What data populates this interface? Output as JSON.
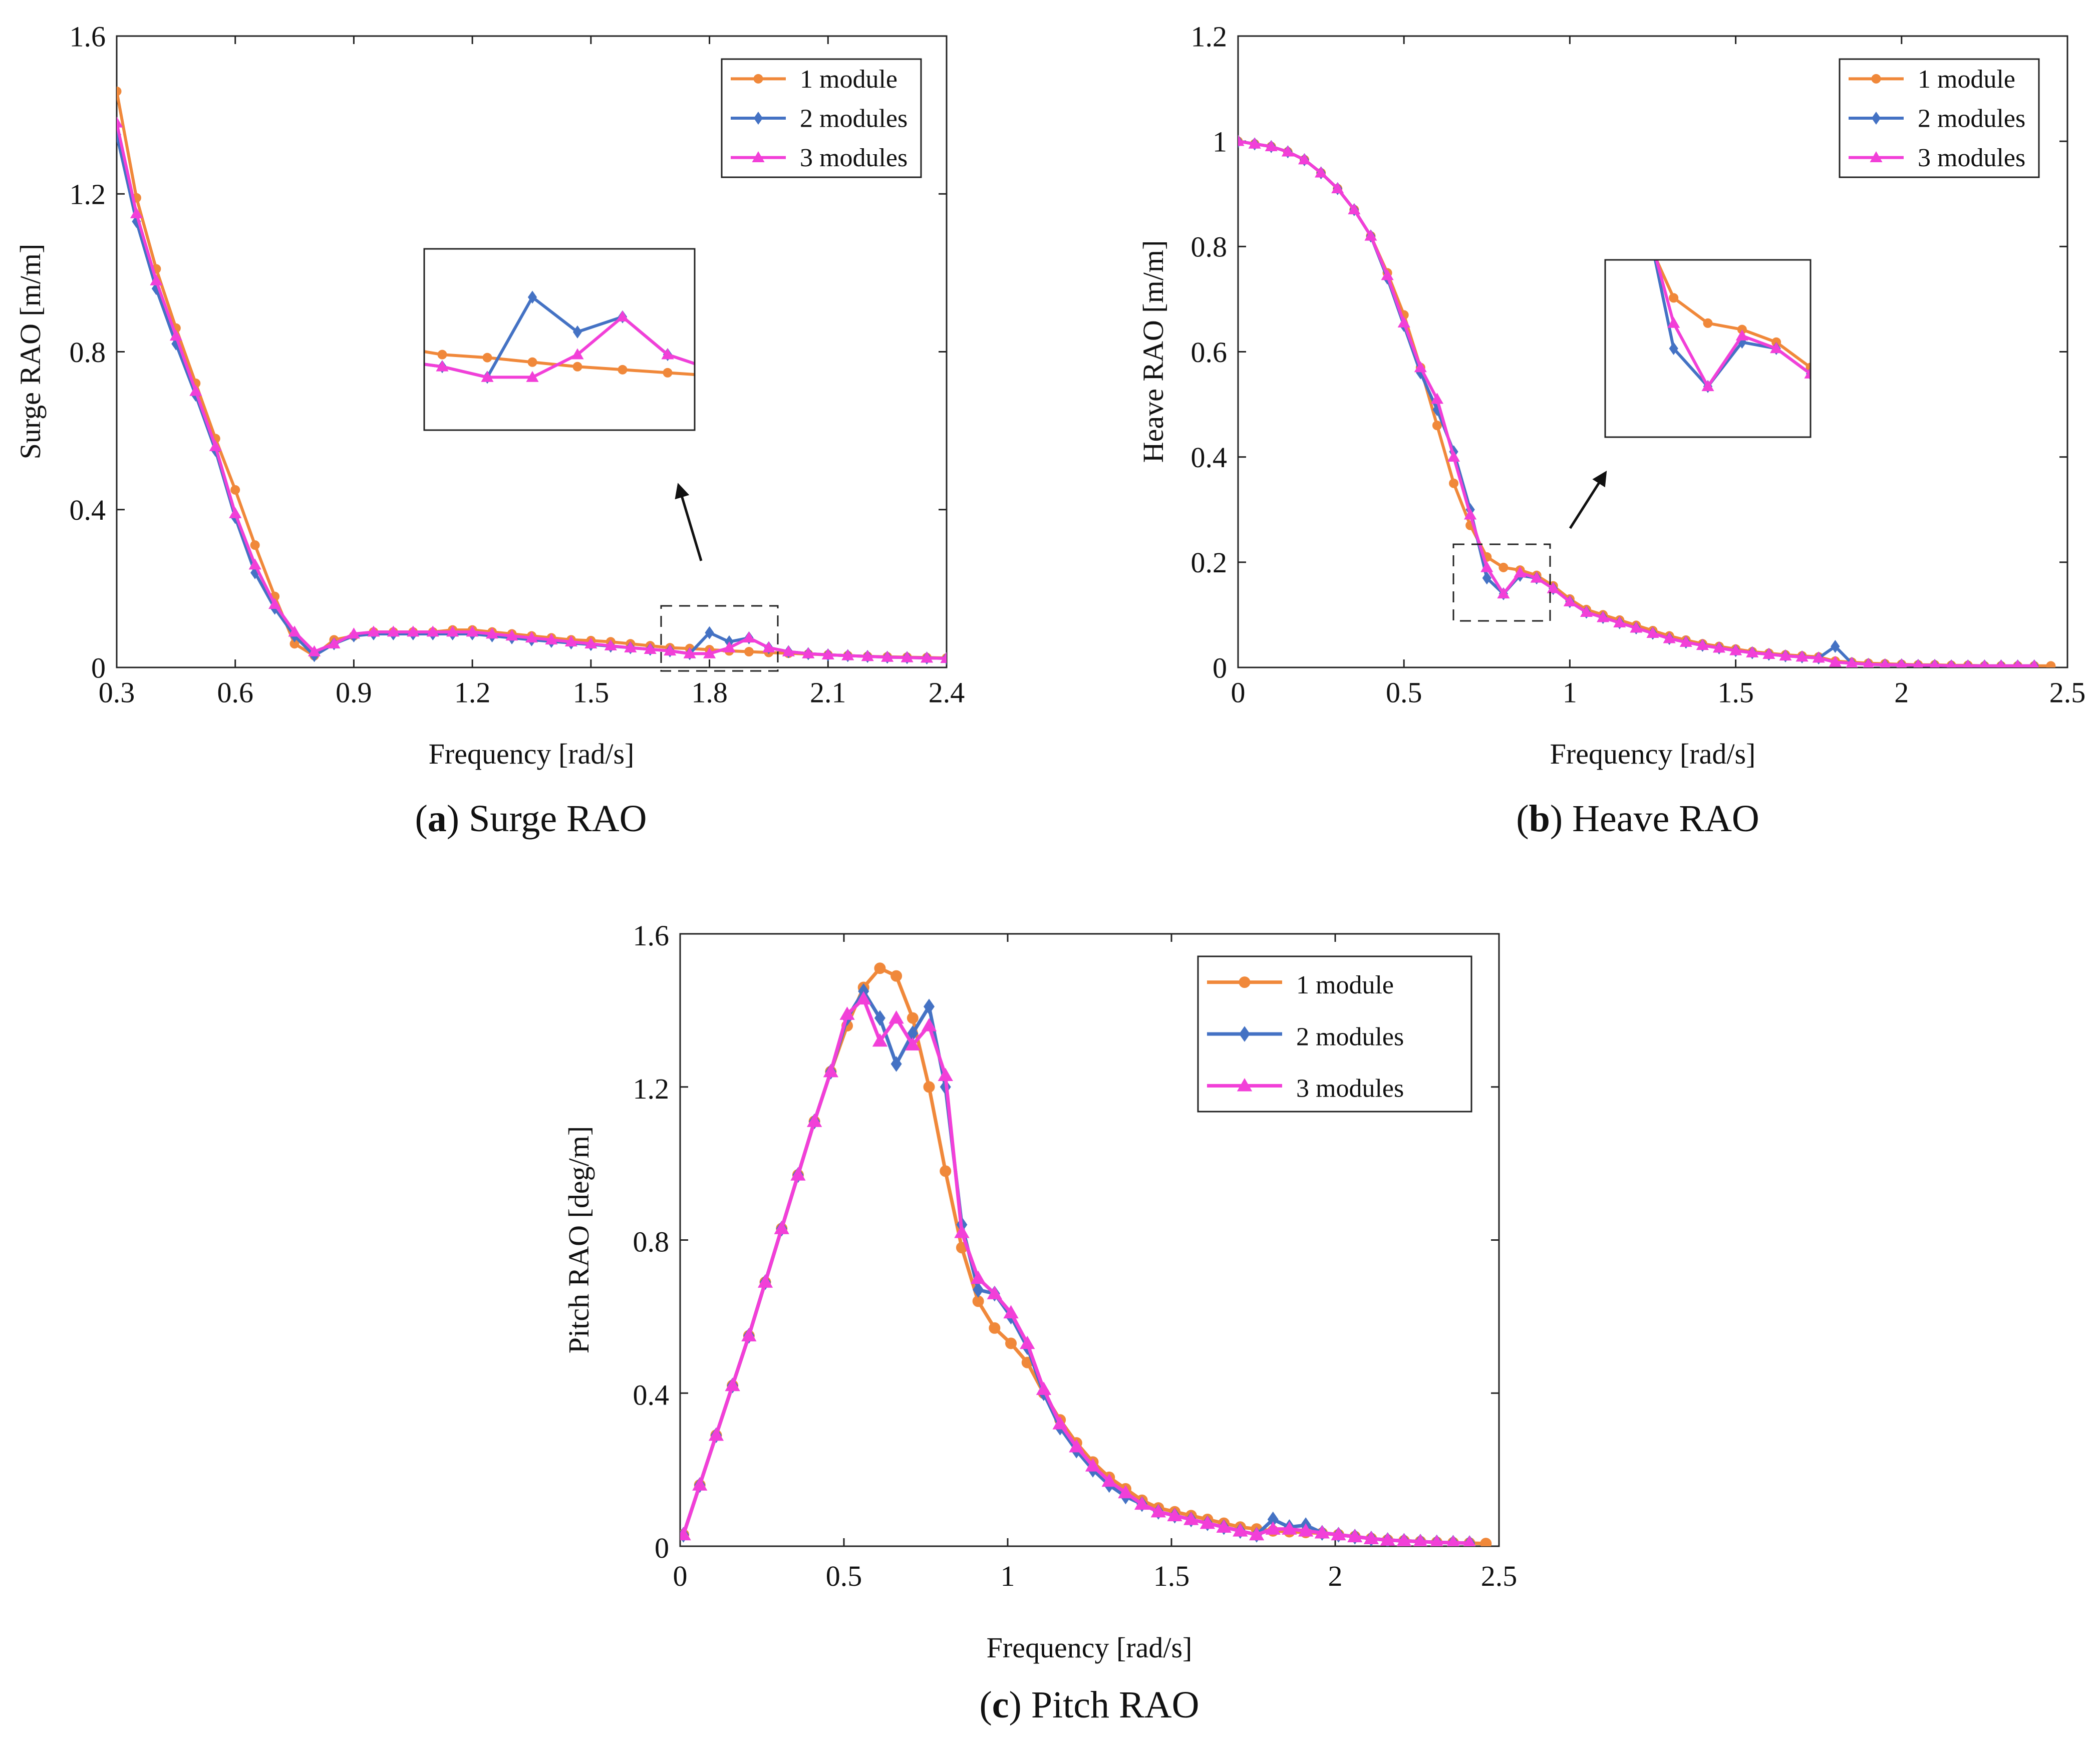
{
  "colors": {
    "one_module": "#F0883A",
    "two_modules": "#4472C4",
    "three_modules": "#F23FD8"
  },
  "chart_data": [
    {
      "id": "a",
      "type": "line",
      "caption_letter": "a",
      "caption_text": "Surge RAO",
      "xlabel": "Frequency [rad/s]",
      "ylabel": "Surge RAO [m/m]",
      "xlim": [
        0.3,
        2.4
      ],
      "ylim": [
        0,
        1.6
      ],
      "xticks": [
        0.3,
        0.6,
        0.9,
        1.2,
        1.5,
        1.8,
        2.1,
        2.4
      ],
      "yticks": [
        0,
        0.4,
        0.8,
        1.2,
        1.6
      ],
      "xtick_labels": [
        "0.3",
        "0.6",
        "0.9",
        "1.2",
        "1.5",
        "1.8",
        "2.1",
        "2.4"
      ],
      "ytick_labels": [
        "0",
        "0.4",
        "0.8",
        "1.2",
        "1.6"
      ],
      "legend": [
        "1 module",
        "2 modules",
        "3 modules"
      ],
      "legend_position": "top-right",
      "inset": {
        "xlim": [
          1.68,
          1.98
        ],
        "ylim": [
          0.0,
          0.12
        ]
      },
      "series": [
        {
          "name": "1 module",
          "x": [
            0.3,
            0.35,
            0.4,
            0.45,
            0.5,
            0.55,
            0.6,
            0.65,
            0.7,
            0.75,
            0.8,
            0.85,
            0.9,
            0.95,
            1.0,
            1.05,
            1.1,
            1.15,
            1.2,
            1.25,
            1.3,
            1.35,
            1.4,
            1.45,
            1.5,
            1.55,
            1.6,
            1.65,
            1.7,
            1.75,
            1.8,
            1.85,
            1.9,
            1.95,
            2.0,
            2.05,
            2.1,
            2.15,
            2.2,
            2.25,
            2.3,
            2.35,
            2.4
          ],
          "y": [
            1.46,
            1.19,
            1.01,
            0.86,
            0.72,
            0.58,
            0.45,
            0.31,
            0.18,
            0.06,
            0.03,
            0.07,
            0.08,
            0.09,
            0.09,
            0.09,
            0.09,
            0.095,
            0.095,
            0.09,
            0.085,
            0.08,
            0.075,
            0.07,
            0.068,
            0.065,
            0.06,
            0.055,
            0.05,
            0.048,
            0.045,
            0.042,
            0.04,
            0.038,
            0.036,
            0.034,
            0.032,
            0.03,
            0.028,
            0.027,
            0.026,
            0.025,
            0.024
          ]
        },
        {
          "name": "2 modules",
          "x": [
            0.3,
            0.35,
            0.4,
            0.45,
            0.5,
            0.55,
            0.6,
            0.65,
            0.7,
            0.75,
            0.8,
            0.85,
            0.9,
            0.95,
            1.0,
            1.05,
            1.1,
            1.15,
            1.2,
            1.25,
            1.3,
            1.35,
            1.4,
            1.45,
            1.5,
            1.55,
            1.6,
            1.65,
            1.7,
            1.75,
            1.8,
            1.85,
            1.9,
            1.95,
            2.0,
            2.05,
            2.1,
            2.15,
            2.2,
            2.25,
            2.3,
            2.35,
            2.4
          ],
          "y": [
            1.35,
            1.13,
            0.96,
            0.82,
            0.69,
            0.55,
            0.38,
            0.24,
            0.15,
            0.08,
            0.03,
            0.06,
            0.08,
            0.085,
            0.085,
            0.085,
            0.085,
            0.085,
            0.085,
            0.08,
            0.075,
            0.07,
            0.066,
            0.062,
            0.058,
            0.054,
            0.05,
            0.046,
            0.042,
            0.035,
            0.088,
            0.065,
            0.075,
            0.05,
            0.04,
            0.035,
            0.032,
            0.03,
            0.028,
            0.026,
            0.025,
            0.024,
            0.023
          ]
        },
        {
          "name": "3 modules",
          "x": [
            0.3,
            0.35,
            0.4,
            0.45,
            0.5,
            0.55,
            0.6,
            0.65,
            0.7,
            0.75,
            0.8,
            0.85,
            0.9,
            0.95,
            1.0,
            1.05,
            1.1,
            1.15,
            1.2,
            1.25,
            1.3,
            1.35,
            1.4,
            1.45,
            1.5,
            1.55,
            1.6,
            1.65,
            1.7,
            1.75,
            1.8,
            1.85,
            1.9,
            1.95,
            2.0,
            2.05,
            2.1,
            2.15,
            2.2,
            2.25,
            2.3,
            2.35,
            2.4
          ],
          "y": [
            1.38,
            1.15,
            0.98,
            0.84,
            0.7,
            0.56,
            0.39,
            0.26,
            0.16,
            0.09,
            0.04,
            0.06,
            0.085,
            0.09,
            0.09,
            0.09,
            0.09,
            0.09,
            0.09,
            0.085,
            0.08,
            0.075,
            0.07,
            0.065,
            0.06,
            0.055,
            0.05,
            0.046,
            0.042,
            0.035,
            0.035,
            0.05,
            0.075,
            0.05,
            0.04,
            0.035,
            0.032,
            0.03,
            0.028,
            0.026,
            0.025,
            0.024,
            0.023
          ]
        }
      ]
    },
    {
      "id": "b",
      "type": "line",
      "caption_letter": "b",
      "caption_text": "Heave RAO",
      "xlabel": "Frequency [rad/s]",
      "ylabel": "Heave RAO [m/m]",
      "xlim": [
        0,
        2.5
      ],
      "ylim": [
        0,
        1.2
      ],
      "xticks": [
        0,
        0.5,
        1,
        1.5,
        2,
        2.5
      ],
      "yticks": [
        0,
        0.2,
        0.4,
        0.6,
        0.8,
        1,
        1.2
      ],
      "xtick_labels": [
        "0",
        "0.5",
        "1",
        "1.5",
        "2",
        "2.5"
      ],
      "ytick_labels": [
        "0",
        "0.2",
        "0.4",
        "0.6",
        "0.8",
        "1",
        "1.2"
      ],
      "legend": [
        "1 module",
        "2 modules",
        "3 modules"
      ],
      "legend_position": "top-right",
      "inset": {
        "xlim": [
          0.65,
          0.95
        ],
        "ylim": [
          0.1,
          0.24
        ]
      },
      "series": [
        {
          "name": "1 module",
          "x": [
            0,
            0.05,
            0.1,
            0.15,
            0.2,
            0.25,
            0.3,
            0.35,
            0.4,
            0.45,
            0.5,
            0.55,
            0.6,
            0.65,
            0.7,
            0.75,
            0.8,
            0.85,
            0.9,
            0.95,
            1.0,
            1.05,
            1.1,
            1.15,
            1.2,
            1.25,
            1.3,
            1.35,
            1.4,
            1.45,
            1.5,
            1.55,
            1.6,
            1.65,
            1.7,
            1.75,
            1.8,
            1.85,
            1.9,
            1.95,
            2.0,
            2.05,
            2.1,
            2.15,
            2.2,
            2.25,
            2.3,
            2.35,
            2.4,
            2.45
          ],
          "y": [
            1.0,
            0.995,
            0.99,
            0.98,
            0.965,
            0.94,
            0.91,
            0.87,
            0.82,
            0.75,
            0.67,
            0.57,
            0.46,
            0.35,
            0.27,
            0.21,
            0.19,
            0.185,
            0.175,
            0.155,
            0.13,
            0.11,
            0.1,
            0.09,
            0.08,
            0.07,
            0.06,
            0.052,
            0.045,
            0.04,
            0.035,
            0.03,
            0.027,
            0.024,
            0.022,
            0.02,
            0.012,
            0.01,
            0.008,
            0.007,
            0.006,
            0.005,
            0.005,
            0.004,
            0.004,
            0.003,
            0.003,
            0.003,
            0.003,
            0.003
          ]
        },
        {
          "name": "2 modules",
          "x": [
            0,
            0.05,
            0.1,
            0.15,
            0.2,
            0.25,
            0.3,
            0.35,
            0.4,
            0.45,
            0.5,
            0.55,
            0.6,
            0.65,
            0.7,
            0.75,
            0.8,
            0.85,
            0.9,
            0.95,
            1.0,
            1.05,
            1.1,
            1.15,
            1.2,
            1.25,
            1.3,
            1.35,
            1.4,
            1.45,
            1.5,
            1.55,
            1.6,
            1.65,
            1.7,
            1.75,
            1.8,
            1.85,
            1.9,
            1.95,
            2.0,
            2.05,
            2.1,
            2.15,
            2.2,
            2.25,
            2.3,
            2.35,
            2.4
          ],
          "y": [
            1.0,
            0.995,
            0.99,
            0.98,
            0.965,
            0.94,
            0.91,
            0.87,
            0.82,
            0.74,
            0.65,
            0.56,
            0.49,
            0.41,
            0.3,
            0.17,
            0.14,
            0.175,
            0.17,
            0.15,
            0.125,
            0.105,
            0.095,
            0.085,
            0.075,
            0.065,
            0.055,
            0.048,
            0.042,
            0.037,
            0.032,
            0.028,
            0.025,
            0.022,
            0.02,
            0.018,
            0.04,
            0.008,
            0.006,
            0.005,
            0.005,
            0.004,
            0.004,
            0.003,
            0.003,
            0.003,
            0.003,
            0.003,
            0.003
          ]
        },
        {
          "name": "3 modules",
          "x": [
            0,
            0.05,
            0.1,
            0.15,
            0.2,
            0.25,
            0.3,
            0.35,
            0.4,
            0.45,
            0.5,
            0.55,
            0.6,
            0.65,
            0.7,
            0.75,
            0.8,
            0.85,
            0.9,
            0.95,
            1.0,
            1.05,
            1.1,
            1.15,
            1.2,
            1.25,
            1.3,
            1.35,
            1.4,
            1.45,
            1.5,
            1.55,
            1.6,
            1.65,
            1.7,
            1.75,
            1.8,
            1.85,
            1.9,
            1.95,
            2.0,
            2.05,
            2.1,
            2.15,
            2.2,
            2.25,
            2.3,
            2.35,
            2.4
          ],
          "y": [
            1.0,
            0.995,
            0.99,
            0.98,
            0.965,
            0.94,
            0.91,
            0.87,
            0.82,
            0.745,
            0.655,
            0.57,
            0.51,
            0.4,
            0.29,
            0.19,
            0.14,
            0.18,
            0.17,
            0.15,
            0.125,
            0.105,
            0.095,
            0.085,
            0.075,
            0.065,
            0.055,
            0.048,
            0.042,
            0.037,
            0.032,
            0.028,
            0.025,
            0.022,
            0.02,
            0.018,
            0.01,
            0.008,
            0.006,
            0.005,
            0.005,
            0.004,
            0.004,
            0.003,
            0.003,
            0.003,
            0.003,
            0.003,
            0.003
          ]
        }
      ]
    },
    {
      "id": "c",
      "type": "line",
      "caption_letter": "c",
      "caption_text": "Pitch RAO",
      "xlabel": "Frequency [rad/s]",
      "ylabel": "Pitch RAO [deg/m]",
      "xlim": [
        0,
        2.5
      ],
      "ylim": [
        0,
        1.6
      ],
      "xticks": [
        0,
        0.5,
        1,
        1.5,
        2,
        2.5
      ],
      "yticks": [
        0,
        0.4,
        0.8,
        1.2,
        1.6
      ],
      "xtick_labels": [
        "0",
        "0.5",
        "1",
        "1.5",
        "2",
        "2.5"
      ],
      "ytick_labels": [
        "0",
        "0.4",
        "0.8",
        "1.2",
        "1.6"
      ],
      "legend": [
        "1 module",
        "2 modules",
        "3 modules"
      ],
      "legend_position": "top-right",
      "series": [
        {
          "name": "1 module",
          "x": [
            0.01,
            0.06,
            0.11,
            0.16,
            0.21,
            0.26,
            0.31,
            0.36,
            0.41,
            0.46,
            0.51,
            0.56,
            0.61,
            0.66,
            0.71,
            0.76,
            0.81,
            0.86,
            0.91,
            0.96,
            1.01,
            1.06,
            1.11,
            1.16,
            1.21,
            1.26,
            1.31,
            1.36,
            1.41,
            1.46,
            1.51,
            1.56,
            1.61,
            1.66,
            1.71,
            1.76,
            1.81,
            1.86,
            1.91,
            1.96,
            2.01,
            2.06,
            2.11,
            2.16,
            2.21,
            2.26,
            2.31,
            2.36,
            2.41,
            2.46
          ],
          "y": [
            0.03,
            0.16,
            0.29,
            0.42,
            0.55,
            0.69,
            0.83,
            0.97,
            1.11,
            1.24,
            1.36,
            1.46,
            1.51,
            1.49,
            1.38,
            1.2,
            0.98,
            0.78,
            0.64,
            0.57,
            0.53,
            0.48,
            0.4,
            0.33,
            0.27,
            0.22,
            0.18,
            0.15,
            0.12,
            0.1,
            0.09,
            0.08,
            0.07,
            0.06,
            0.05,
            0.045,
            0.04,
            0.038,
            0.036,
            0.034,
            0.03,
            0.025,
            0.02,
            0.016,
            0.014,
            0.012,
            0.01,
            0.009,
            0.008,
            0.007
          ]
        },
        {
          "name": "2 modules",
          "x": [
            0.01,
            0.06,
            0.11,
            0.16,
            0.21,
            0.26,
            0.31,
            0.36,
            0.41,
            0.46,
            0.51,
            0.56,
            0.61,
            0.66,
            0.71,
            0.76,
            0.81,
            0.86,
            0.91,
            0.96,
            1.01,
            1.06,
            1.11,
            1.16,
            1.21,
            1.26,
            1.31,
            1.36,
            1.41,
            1.46,
            1.51,
            1.56,
            1.61,
            1.66,
            1.71,
            1.76,
            1.81,
            1.86,
            1.91,
            1.96,
            2.01,
            2.06,
            2.11,
            2.16,
            2.21,
            2.26,
            2.31,
            2.36,
            2.41
          ],
          "y": [
            0.03,
            0.16,
            0.29,
            0.42,
            0.55,
            0.69,
            0.83,
            0.97,
            1.11,
            1.24,
            1.38,
            1.45,
            1.38,
            1.26,
            1.34,
            1.41,
            1.2,
            0.84,
            0.67,
            0.66,
            0.6,
            0.52,
            0.4,
            0.31,
            0.25,
            0.2,
            0.16,
            0.13,
            0.11,
            0.09,
            0.08,
            0.07,
            0.06,
            0.05,
            0.04,
            0.03,
            0.07,
            0.05,
            0.055,
            0.035,
            0.03,
            0.025,
            0.02,
            0.016,
            0.014,
            0.012,
            0.01,
            0.009,
            0.008
          ]
        },
        {
          "name": "3 modules",
          "x": [
            0.01,
            0.06,
            0.11,
            0.16,
            0.21,
            0.26,
            0.31,
            0.36,
            0.41,
            0.46,
            0.51,
            0.56,
            0.61,
            0.66,
            0.71,
            0.76,
            0.81,
            0.86,
            0.91,
            0.96,
            1.01,
            1.06,
            1.11,
            1.16,
            1.21,
            1.26,
            1.31,
            1.36,
            1.41,
            1.46,
            1.51,
            1.56,
            1.61,
            1.66,
            1.71,
            1.76,
            1.81,
            1.86,
            1.91,
            1.96,
            2.01,
            2.06,
            2.11,
            2.16,
            2.21,
            2.26,
            2.31,
            2.36,
            2.41
          ],
          "y": [
            0.03,
            0.16,
            0.29,
            0.42,
            0.55,
            0.69,
            0.83,
            0.97,
            1.11,
            1.24,
            1.39,
            1.43,
            1.32,
            1.38,
            1.31,
            1.36,
            1.23,
            0.82,
            0.7,
            0.66,
            0.61,
            0.53,
            0.41,
            0.32,
            0.26,
            0.21,
            0.17,
            0.14,
            0.11,
            0.09,
            0.08,
            0.07,
            0.06,
            0.05,
            0.04,
            0.03,
            0.045,
            0.045,
            0.04,
            0.035,
            0.03,
            0.025,
            0.02,
            0.016,
            0.014,
            0.012,
            0.01,
            0.009,
            0.008
          ]
        }
      ]
    }
  ]
}
